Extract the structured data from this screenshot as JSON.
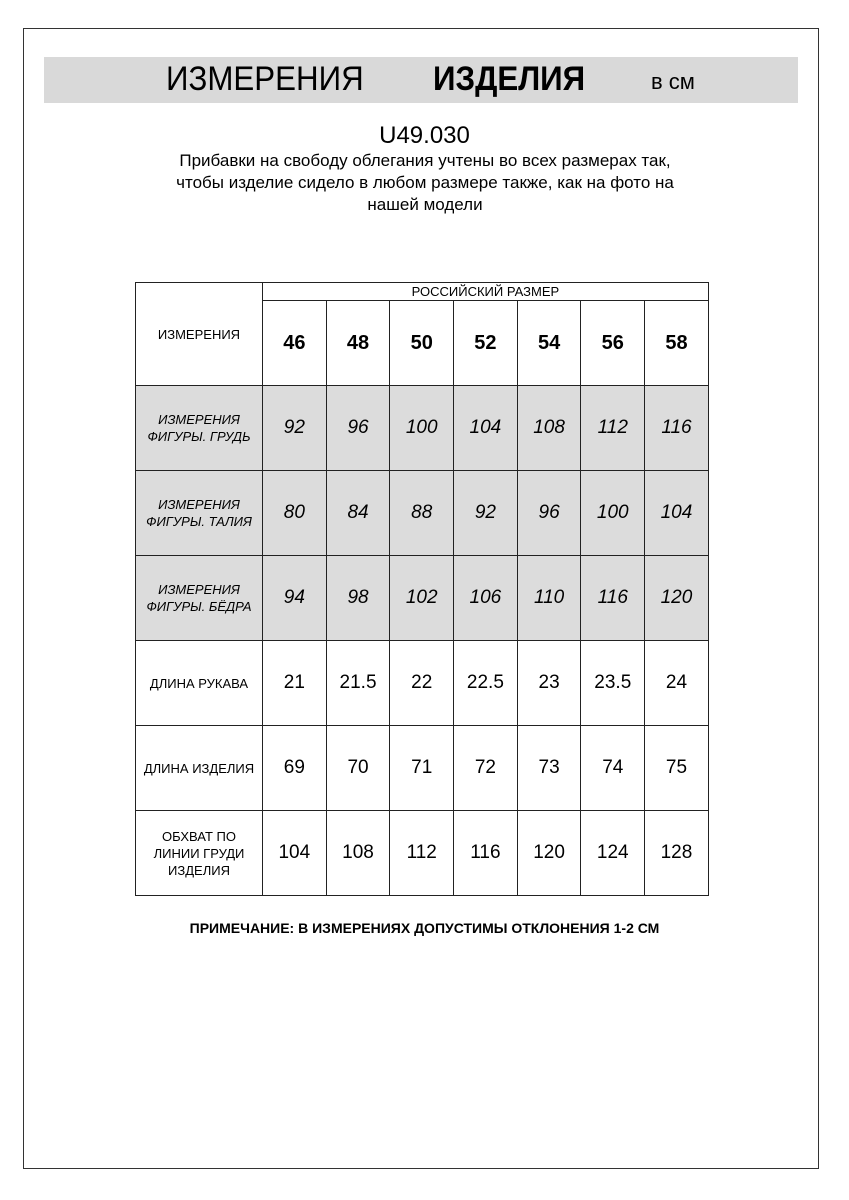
{
  "header": {
    "title_regular": "ИЗМЕРЕНИЯ",
    "title_bold": "ИЗДЕЛИЯ",
    "unit": "в см"
  },
  "article": "U49.030",
  "description_lines": [
    "Прибавки на свободу облегания учтены во всех размерах так,",
    "чтобы изделие сидело в любом размере также, как на фото на",
    "нашей модели"
  ],
  "table": {
    "corner_label": "ИЗМЕРЕНИЯ",
    "group_label": "РОССИЙСКИЙ РАЗМЕР",
    "sizes": [
      "46",
      "48",
      "50",
      "52",
      "54",
      "56",
      "58"
    ],
    "rows": [
      {
        "label": [
          "ИЗМЕРЕНИЯ",
          "ФИГУРЫ. ГРУДЬ"
        ],
        "values": [
          "92",
          "96",
          "100",
          "104",
          "108",
          "112",
          "116"
        ]
      },
      {
        "label": [
          "ИЗМЕРЕНИЯ",
          "ФИГУРЫ. ТАЛИЯ"
        ],
        "values": [
          "80",
          "84",
          "88",
          "92",
          "96",
          "100",
          "104"
        ]
      },
      {
        "label": [
          "ИЗМЕРЕНИЯ",
          "ФИГУРЫ. БЁДРА"
        ],
        "values": [
          "94",
          "98",
          "102",
          "106",
          "110",
          "116",
          "120"
        ]
      },
      {
        "label": [
          "ДЛИНА РУКАВА"
        ],
        "values": [
          "21",
          "21.5",
          "22",
          "22.5",
          "23",
          "23.5",
          "24"
        ]
      },
      {
        "label": [
          "ДЛИНА ИЗДЕЛИЯ"
        ],
        "values": [
          "69",
          "70",
          "71",
          "72",
          "73",
          "74",
          "75"
        ]
      },
      {
        "label": [
          "ОБХВАТ ПО",
          "ЛИНИИ ГРУДИ",
          "ИЗДЕЛИЯ"
        ],
        "values": [
          "104",
          "108",
          "112",
          "116",
          "120",
          "124",
          "128"
        ]
      }
    ]
  },
  "note": "ПРИМЕЧАНИЕ: В ИЗМЕРЕНИЯХ ДОПУСТИМЫ ОТКЛОНЕНИЯ 1-2 СМ",
  "colors": {
    "band": "#d9d9d9",
    "shaded_rows": "#dcdcdc"
  }
}
